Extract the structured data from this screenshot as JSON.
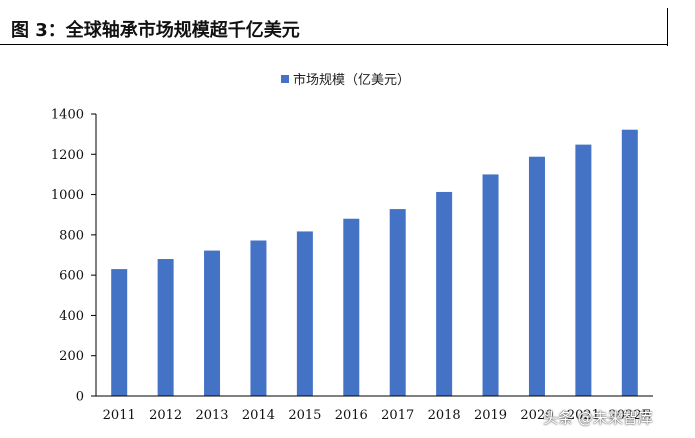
{
  "figure": {
    "title": "图 3：全球轴承市场规模超千亿美元"
  },
  "watermark": "头条 @未来智库",
  "colors": {
    "bar": "#4472C4",
    "axis": "#000000",
    "text": "#111111"
  },
  "chart_data": {
    "type": "bar",
    "categories": [
      "2011",
      "2012",
      "2013",
      "2014",
      "2015",
      "2016",
      "2017",
      "2018",
      "2019",
      "2020",
      "2021",
      "2022E"
    ],
    "series": [
      {
        "name": "市场规模（亿美元）",
        "values": [
          630,
          680,
          722,
          772,
          817,
          880,
          928,
          1013,
          1100,
          1188,
          1248,
          1322
        ]
      }
    ],
    "ylim": [
      0,
      1400
    ],
    "yticks": [
      0,
      200,
      400,
      600,
      800,
      1000,
      1200,
      1400
    ],
    "xlabel": "",
    "ylabel": "",
    "grid": false,
    "legend_position": "top-center"
  }
}
